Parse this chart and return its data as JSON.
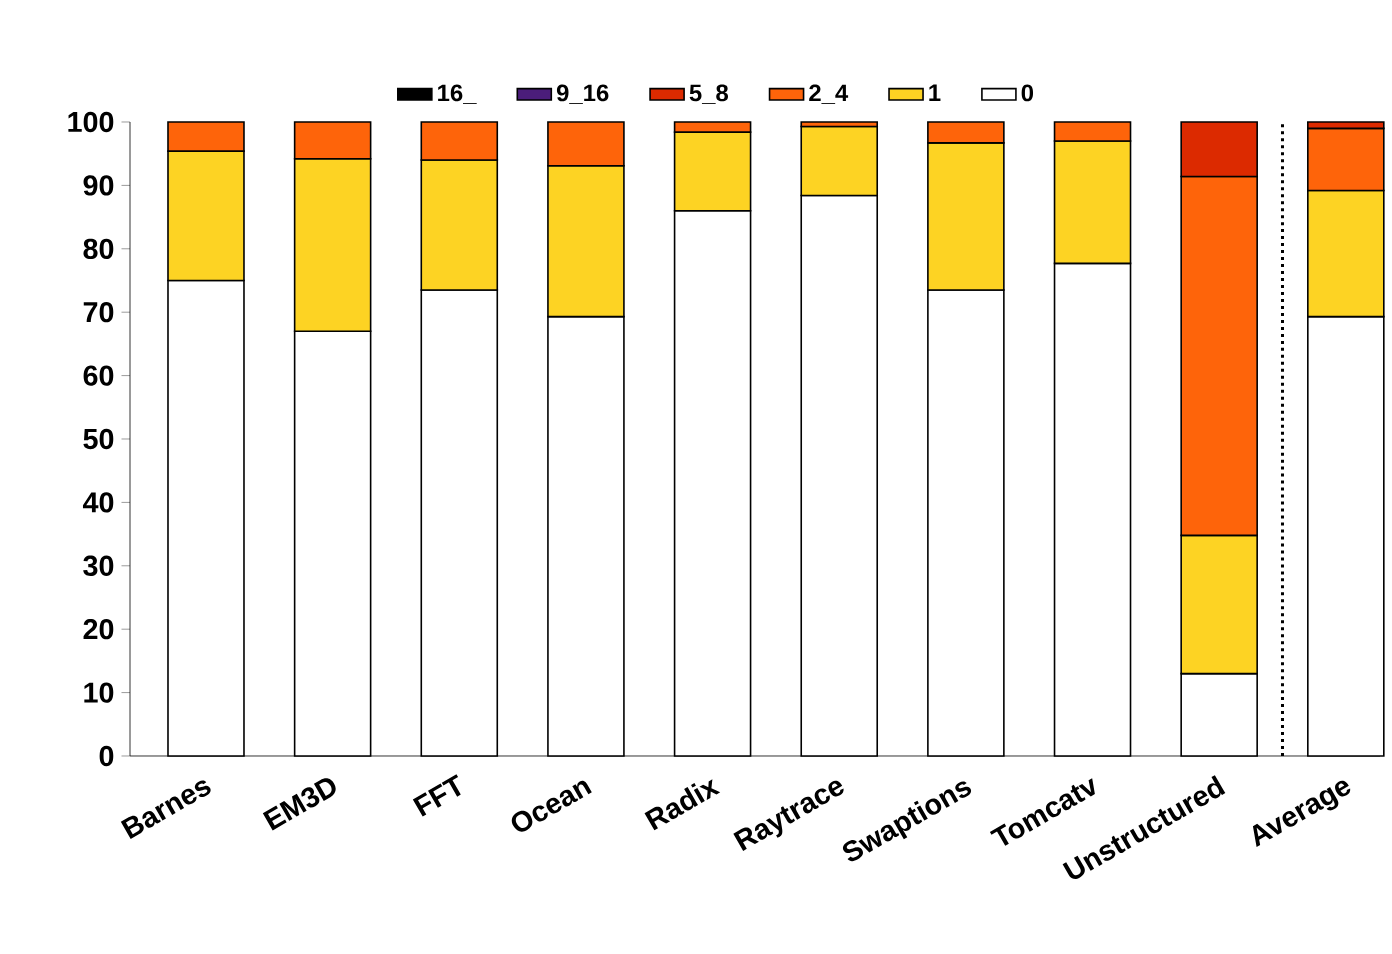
{
  "chart_data": {
    "type": "bar",
    "stacked": true,
    "categories": [
      "Barnes",
      "EM3D",
      "FFT",
      "Ocean",
      "Radix",
      "Raytrace",
      "Swaptions",
      "Tomcatv",
      "Unstructured",
      "Average"
    ],
    "series": [
      {
        "name": "0",
        "color": "#ffffff",
        "values": [
          75,
          67,
          73.5,
          69.3,
          86,
          88.4,
          73.5,
          77.7,
          13,
          69.3
        ]
      },
      {
        "name": "1",
        "color": "#fdd323",
        "values": [
          20.4,
          27.2,
          20.5,
          23.8,
          12.4,
          10.9,
          23.2,
          19.3,
          21.8,
          19.9
        ]
      },
      {
        "name": "2_4",
        "color": "#fe640a",
        "values": [
          4.6,
          5.8,
          6,
          6.9,
          1.6,
          0.7,
          3.3,
          3,
          56.6,
          9.8
        ]
      },
      {
        "name": "5_8",
        "color": "#dc2a00",
        "values": [
          null,
          null,
          null,
          null,
          null,
          null,
          null,
          null,
          8.6,
          1.0
        ]
      },
      {
        "name": "9_16",
        "color": "#4b1d7a",
        "values": [
          null,
          null,
          null,
          null,
          null,
          null,
          null,
          null,
          null,
          null
        ]
      },
      {
        "name": "16_",
        "color": "#000000",
        "values": [
          null,
          null,
          null,
          null,
          null,
          null,
          null,
          null,
          null,
          null
        ]
      }
    ],
    "ylim": [
      0,
      100
    ],
    "yticks": [
      0,
      10,
      20,
      30,
      40,
      50,
      60,
      70,
      80,
      90,
      100
    ],
    "legend": "top"
  }
}
